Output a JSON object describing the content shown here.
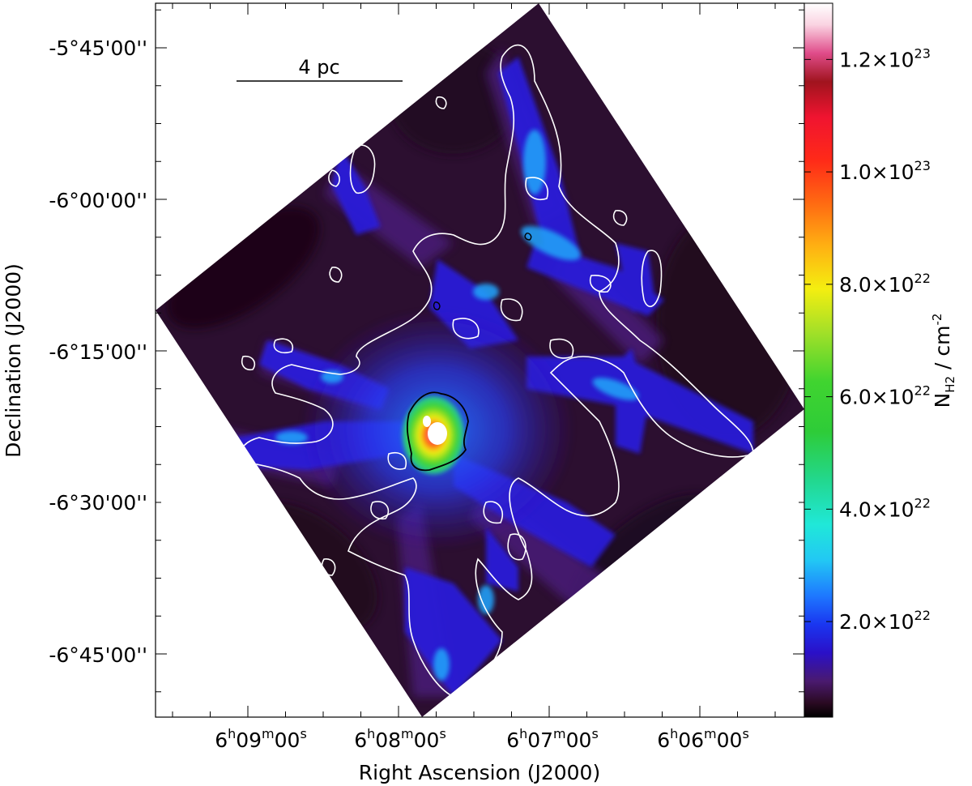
{
  "chart_data": {
    "type": "heatmap",
    "xlabel": "Right Ascension (J2000)",
    "ylabel": "Declination (J2000)",
    "x_ticks": [
      {
        "h": "6",
        "m": "09",
        "s": "00"
      },
      {
        "h": "6",
        "m": "08",
        "s": "00"
      },
      {
        "h": "6",
        "m": "07",
        "s": "00"
      },
      {
        "h": "6",
        "m": "06",
        "s": "00"
      }
    ],
    "y_ticks": [
      "-5°45'00''",
      "-6°00'00''",
      "-6°15'00''",
      "-6°30'00''",
      "-6°45'00''"
    ],
    "colorbar": {
      "label_main": "N",
      "label_sub": "H2",
      "label_unit": " / cm",
      "label_exp": "-2",
      "range": [
        3e+21,
        1.3e+23
      ],
      "ticks": [
        {
          "value": 2e+22,
          "mant": "2.0×10",
          "exp": "22"
        },
        {
          "value": 4e+22,
          "mant": "4.0×10",
          "exp": "22"
        },
        {
          "value": 6e+22,
          "mant": "6.0×10",
          "exp": "22"
        },
        {
          "value": 8e+22,
          "mant": "8.0×10",
          "exp": "22"
        },
        {
          "value": 1e+23,
          "mant": "1.0×10",
          "exp": "23"
        },
        {
          "value": 1.2e+23,
          "mant": "1.2×10",
          "exp": "23"
        }
      ]
    },
    "scale_bar": "4 pc",
    "colors": {
      "background_low": "#1a0418",
      "mid": "#2a1ad8",
      "high": "#ff2a1a",
      "contour_outer": "#ffffff",
      "contour_inner": "#000000"
    }
  }
}
